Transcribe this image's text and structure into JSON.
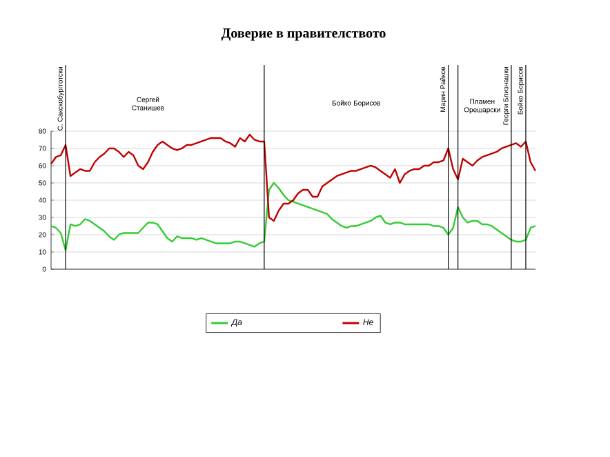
{
  "chart_data": {
    "type": "line",
    "title": "Доверие в правителството",
    "categories": [
      null,
      null,
      null,
      null,
      null,
      null,
      null,
      null,
      null,
      null,
      null,
      null,
      null,
      null,
      null,
      null,
      null,
      null,
      null,
      null,
      null,
      null,
      null,
      null,
      null,
      null,
      null,
      null,
      null,
      null,
      null,
      null,
      null,
      null,
      null,
      null,
      null,
      null,
      null,
      null,
      null,
      null,
      null,
      null,
      null,
      null,
      null,
      null,
      null,
      null,
      null,
      null,
      null,
      null,
      null,
      null,
      null,
      null,
      null,
      null,
      null,
      null,
      null,
      null,
      null,
      null,
      null,
      null,
      null,
      null,
      null,
      null,
      null,
      null,
      null,
      null,
      null,
      null,
      null,
      null,
      null,
      null,
      null,
      null,
      null,
      null,
      null,
      null,
      null,
      null,
      null,
      null,
      null,
      null,
      null,
      null,
      null,
      null,
      null,
      null,
      null
    ],
    "series": [
      {
        "name": "Да",
        "color": "#33cc33",
        "values": [
          25,
          24,
          21,
          11,
          26,
          25,
          26,
          29,
          28,
          26,
          24,
          22,
          19,
          17,
          20,
          21,
          21,
          21,
          21,
          24,
          27,
          27,
          26,
          22,
          18,
          16,
          19,
          18,
          18,
          18,
          17,
          18,
          17,
          16,
          15,
          15,
          15,
          15,
          16,
          16,
          15,
          14,
          13,
          15,
          16,
          46,
          50,
          47,
          43,
          40,
          39,
          38,
          37,
          36,
          35,
          34,
          33,
          32,
          29,
          27,
          25,
          24,
          25,
          25,
          26,
          27,
          28,
          30,
          31,
          27,
          26,
          27,
          27,
          26,
          26,
          26,
          26,
          26,
          26,
          25,
          25,
          24,
          20,
          24,
          36,
          30,
          27,
          28,
          28,
          26,
          26,
          25,
          23,
          21,
          19,
          17,
          16,
          16,
          17,
          24,
          25
        ]
      },
      {
        "name": "Не",
        "color": "#c00000",
        "values": [
          61,
          65,
          66,
          72,
          54,
          56,
          58,
          57,
          57,
          62,
          65,
          67,
          70,
          70,
          68,
          65,
          68,
          66,
          60,
          58,
          62,
          68,
          72,
          74,
          72,
          70,
          69,
          70,
          72,
          72,
          73,
          74,
          75,
          76,
          76,
          76,
          74,
          73,
          71,
          76,
          74,
          78,
          75,
          74,
          74,
          30,
          28,
          34,
          38,
          38,
          40,
          44,
          46,
          46,
          42,
          42,
          48,
          50,
          52,
          54,
          55,
          56,
          57,
          57,
          58,
          59,
          60,
          59,
          57,
          55,
          53,
          58,
          50,
          55,
          57,
          58,
          58,
          60,
          60,
          62,
          62,
          63,
          70,
          58,
          52,
          64,
          62,
          60,
          63,
          65,
          66,
          67,
          68,
          70,
          71,
          72,
          73,
          71,
          74,
          62,
          57
        ]
      }
    ],
    "ylim": [
      0,
      80
    ],
    "yticks": [
      0,
      10,
      20,
      30,
      40,
      50,
      60,
      70,
      80
    ],
    "grid": "y",
    "legend": "bottom",
    "marker": "none",
    "line_style": "solid",
    "annotations": [
      "Сергей Станишев",
      "Бойко Борисов",
      "Пламен Орешарски",
      "С. Сакскобургготски",
      "Марин Райков",
      "Георги Близнашки",
      "Бойко Борисов"
    ]
  }
}
